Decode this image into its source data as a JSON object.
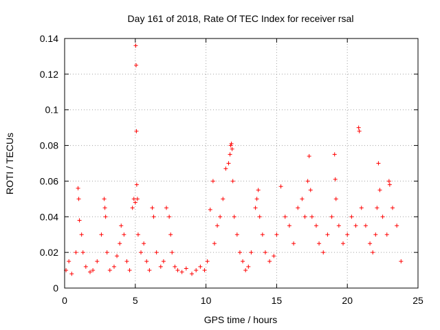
{
  "chart_data": {
    "type": "scatter",
    "title": "Day 161 of 2018, Rate Of TEC Index for receiver rsal",
    "xlabel": "GPS time / hours",
    "ylabel": "ROTI / TECUs",
    "xlim": [
      0,
      25
    ],
    "ylim": [
      0,
      0.14
    ],
    "xticks": [
      0,
      5,
      10,
      15,
      20,
      25
    ],
    "yticks": [
      0,
      0.02,
      0.04,
      0.06,
      0.08,
      0.1,
      0.12,
      0.14
    ],
    "xtick_labels": [
      "0",
      "5",
      "10",
      "15",
      "20",
      "25"
    ],
    "ytick_labels": [
      "0",
      "0.02",
      "0.04",
      "0.06",
      "0.08",
      "0.1",
      "0.12",
      "0.14"
    ],
    "marker": "+",
    "color": "#ff0000",
    "grid": true,
    "series": [
      {
        "name": "ROTI",
        "x": [
          0.1,
          0.3,
          0.5,
          0.8,
          0.95,
          1.0,
          1.05,
          1.2,
          1.3,
          1.5,
          1.8,
          2.0,
          2.3,
          2.6,
          2.8,
          2.85,
          2.9,
          3.0,
          3.2,
          3.5,
          3.7,
          3.9,
          4.0,
          4.2,
          4.4,
          4.6,
          4.8,
          4.9,
          5.0,
          5.03,
          5.06,
          5.08,
          5.1,
          5.15,
          5.2,
          5.4,
          5.6,
          5.8,
          6.0,
          6.2,
          6.3,
          6.5,
          6.8,
          7.0,
          7.2,
          7.4,
          7.5,
          7.6,
          7.8,
          8.0,
          8.3,
          8.6,
          9.0,
          9.3,
          9.6,
          9.9,
          10.1,
          10.3,
          10.5,
          10.6,
          10.8,
          11.0,
          11.2,
          11.4,
          11.6,
          11.7,
          11.75,
          11.8,
          11.85,
          11.9,
          12.0,
          12.2,
          12.4,
          12.6,
          12.8,
          13.0,
          13.2,
          13.5,
          13.6,
          13.7,
          13.8,
          14.0,
          14.2,
          14.5,
          14.8,
          15.0,
          15.3,
          15.6,
          15.9,
          16.2,
          16.5,
          16.8,
          17.0,
          17.2,
          17.3,
          17.4,
          17.5,
          17.8,
          18.0,
          18.3,
          18.6,
          18.9,
          19.1,
          19.15,
          19.2,
          19.4,
          19.7,
          20.0,
          20.3,
          20.6,
          20.8,
          20.85,
          21.0,
          21.3,
          21.6,
          21.8,
          22.0,
          22.1,
          22.2,
          22.3,
          22.5,
          22.8,
          22.95,
          23.0,
          23.2,
          23.5,
          23.8
        ],
        "y": [
          0.01,
          0.015,
          0.008,
          0.02,
          0.056,
          0.05,
          0.038,
          0.03,
          0.02,
          0.012,
          0.009,
          0.01,
          0.015,
          0.03,
          0.05,
          0.045,
          0.04,
          0.02,
          0.01,
          0.012,
          0.018,
          0.025,
          0.035,
          0.03,
          0.015,
          0.01,
          0.045,
          0.05,
          0.048,
          0.136,
          0.125,
          0.088,
          0.058,
          0.05,
          0.03,
          0.02,
          0.025,
          0.015,
          0.01,
          0.045,
          0.04,
          0.02,
          0.012,
          0.015,
          0.045,
          0.04,
          0.03,
          0.02,
          0.012,
          0.01,
          0.009,
          0.011,
          0.008,
          0.01,
          0.012,
          0.01,
          0.015,
          0.044,
          0.06,
          0.025,
          0.035,
          0.04,
          0.05,
          0.067,
          0.07,
          0.075,
          0.08,
          0.081,
          0.078,
          0.06,
          0.04,
          0.03,
          0.02,
          0.015,
          0.01,
          0.012,
          0.02,
          0.045,
          0.05,
          0.055,
          0.04,
          0.03,
          0.02,
          0.015,
          0.018,
          0.03,
          0.057,
          0.04,
          0.035,
          0.025,
          0.045,
          0.05,
          0.04,
          0.06,
          0.074,
          0.055,
          0.04,
          0.035,
          0.025,
          0.02,
          0.03,
          0.04,
          0.075,
          0.061,
          0.05,
          0.035,
          0.025,
          0.03,
          0.04,
          0.035,
          0.09,
          0.088,
          0.045,
          0.035,
          0.025,
          0.02,
          0.03,
          0.045,
          0.07,
          0.055,
          0.04,
          0.03,
          0.06,
          0.058,
          0.045,
          0.035,
          0.015
        ]
      }
    ]
  }
}
